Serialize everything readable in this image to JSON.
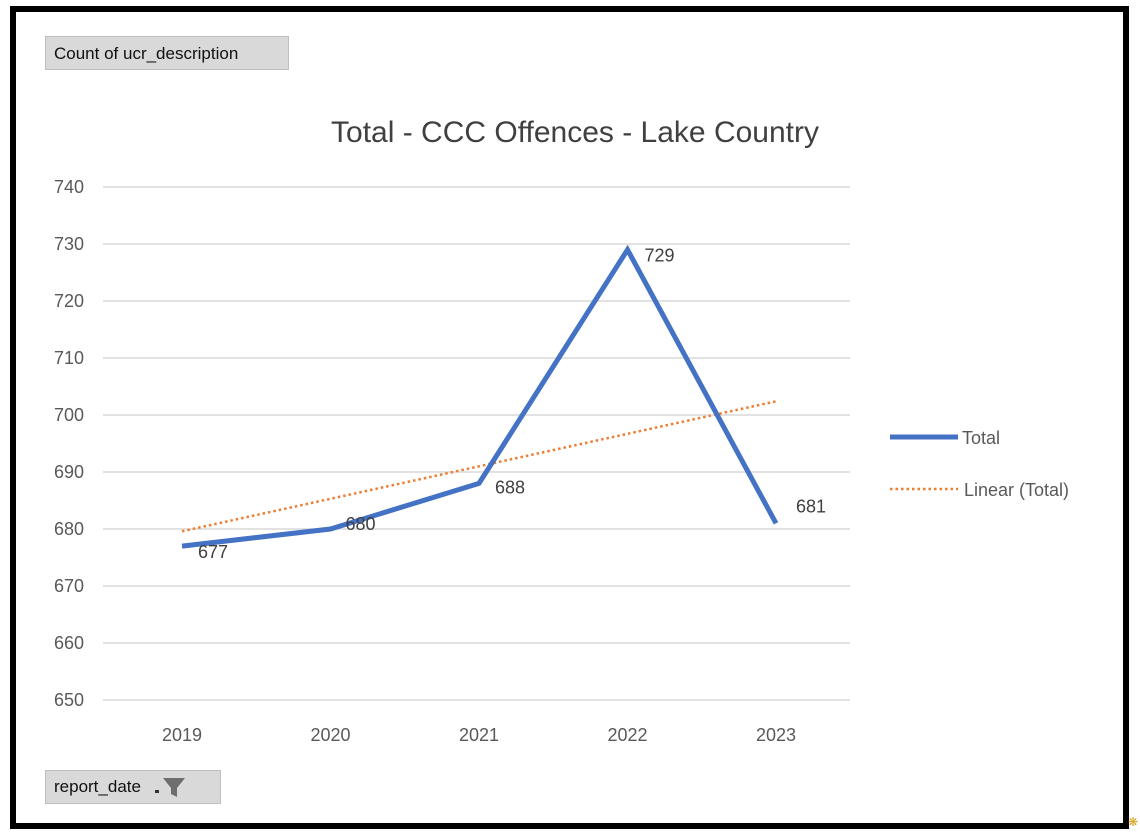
{
  "pivot": {
    "field_label": "Count of ucr_description",
    "filter_label": "report_date"
  },
  "chart_data": {
    "type": "line",
    "title": "Total - CCC Offences - Lake Country",
    "xlabel": "",
    "ylabel": "",
    "categories": [
      "2019",
      "2020",
      "2021",
      "2022",
      "2023"
    ],
    "series": [
      {
        "name": "Total",
        "values": [
          677,
          680,
          688,
          729,
          681
        ],
        "color": "#4472c4",
        "style": "solid"
      }
    ],
    "trendline": {
      "name": "Linear (Total)",
      "type": "linear",
      "color": "#ed7d31",
      "style": "dotted"
    },
    "data_labels": [
      "677",
      "680",
      "688",
      "729",
      "681"
    ],
    "ylim": [
      650,
      740
    ],
    "yticks": [
      650,
      660,
      670,
      680,
      690,
      700,
      710,
      720,
      730,
      740
    ],
    "grid": true,
    "legend_position": "right"
  }
}
